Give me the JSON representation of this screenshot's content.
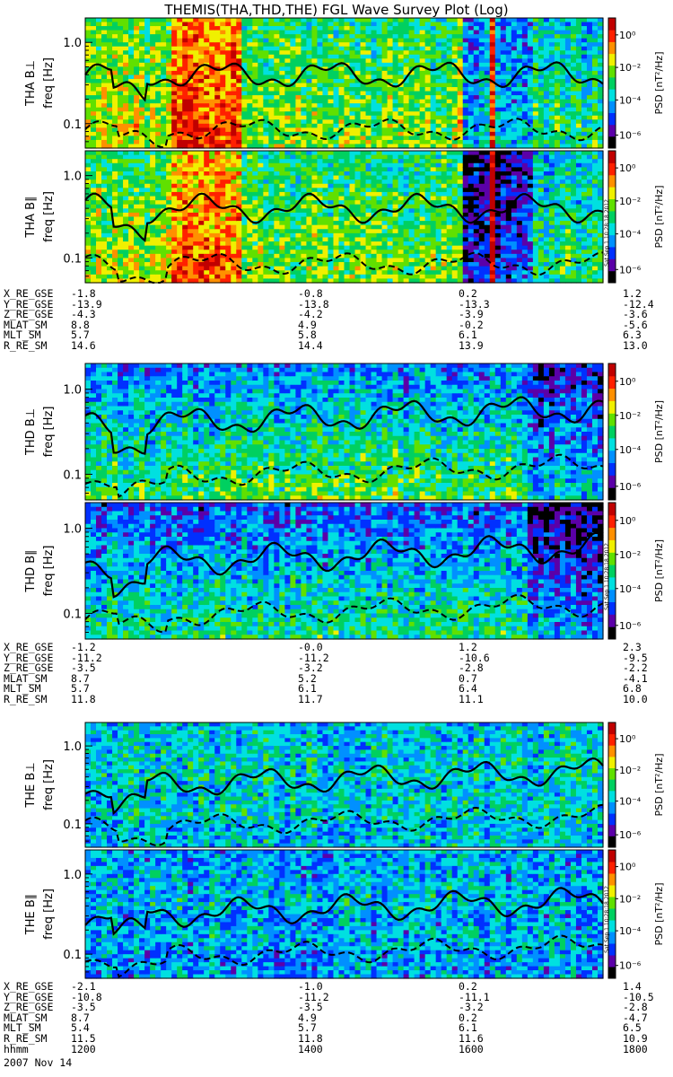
{
  "title": "THEMIS(THA,THD,THE) FGL Wave Survey Plot (Log)",
  "colorbar": {
    "label": "PSD [nT²/Hz]",
    "ticks": [
      "10⁰",
      "10⁻²",
      "10⁻⁴",
      "10⁻⁶"
    ],
    "colors": [
      "#000000",
      "#5b00a8",
      "#0030ff",
      "#0090ff",
      "#00e0e0",
      "#00d060",
      "#60e000",
      "#f0f000",
      "#ff9000",
      "#ff2000",
      "#c00000"
    ]
  },
  "stamp": "Sat Sep 1 10:28:18 2012",
  "chart_data": [
    {
      "type": "heatmap",
      "panel": "THA B⊥",
      "ylabel": "freq [Hz]",
      "yscale": "log",
      "yticks": [
        "1.0",
        "0.1"
      ],
      "ylim": [
        0.05,
        2.0
      ],
      "xlim": [
        "12:00",
        "18:00"
      ],
      "series": [
        {
          "line": "solid"
        },
        {
          "line": "dashed"
        }
      ]
    },
    {
      "type": "heatmap",
      "panel": "THA B∥",
      "ylabel": "freq [Hz]",
      "yscale": "log",
      "yticks": [
        "1.0",
        "0.1"
      ],
      "ylim": [
        0.05,
        2.0
      ],
      "xlim": [
        "12:00",
        "18:00"
      ]
    },
    {
      "type": "heatmap",
      "panel": "THD B⊥",
      "ylabel": "freq [Hz]",
      "yscale": "log",
      "yticks": [
        "1.0",
        "0.1"
      ],
      "ylim": [
        0.05,
        2.0
      ],
      "xlim": [
        "12:00",
        "18:00"
      ]
    },
    {
      "type": "heatmap",
      "panel": "THD B∥",
      "ylabel": "freq [Hz]",
      "yscale": "log",
      "yticks": [
        "1.0",
        "0.1"
      ],
      "ylim": [
        0.05,
        2.0
      ],
      "xlim": [
        "12:00",
        "18:00"
      ]
    },
    {
      "type": "heatmap",
      "panel": "THE B⊥",
      "ylabel": "freq [Hz]",
      "yscale": "log",
      "yticks": [
        "1.0",
        "0.1"
      ],
      "ylim": [
        0.05,
        2.0
      ],
      "xlim": [
        "12:00",
        "18:00"
      ]
    },
    {
      "type": "heatmap",
      "panel": "THE B∥",
      "ylabel": "freq [Hz]",
      "yscale": "log",
      "yticks": [
        "1.0",
        "0.1"
      ],
      "ylim": [
        0.05,
        2.0
      ],
      "xlim": [
        "12:00",
        "18:00"
      ]
    }
  ],
  "panels": [
    {
      "label": "THA B⊥",
      "ylabel": "freq [Hz]"
    },
    {
      "label": "THA B∥",
      "ylabel": "freq [Hz]"
    },
    {
      "label": "THD B⊥",
      "ylabel": "freq [Hz]"
    },
    {
      "label": "THD B∥",
      "ylabel": "freq [Hz]"
    },
    {
      "label": "THE B⊥",
      "ylabel": "freq [Hz]"
    },
    {
      "label": "THE B∥",
      "ylabel": "freq [Hz]"
    }
  ],
  "ephemeris": [
    {
      "rows": [
        {
          "name": "X_RE_GSE",
          "values": [
            "-1.8",
            "-0.8",
            "0.2",
            "1.2"
          ]
        },
        {
          "name": "Y_RE_GSE",
          "values": [
            "-13.9",
            "-13.8",
            "-13.3",
            "-12.4"
          ]
        },
        {
          "name": "Z_RE_GSE",
          "values": [
            "-4.3",
            "-4.2",
            "-3.9",
            "-3.6"
          ]
        },
        {
          "name": "MLAT_SM",
          "values": [
            "8.8",
            "4.9",
            "-0.2",
            "-5.6"
          ]
        },
        {
          "name": "MLT_SM",
          "values": [
            "5.7",
            "5.8",
            "6.1",
            "6.3"
          ]
        },
        {
          "name": "R_RE_SM",
          "values": [
            "14.6",
            "14.4",
            "13.9",
            "13.0"
          ]
        }
      ]
    },
    {
      "rows": [
        {
          "name": "X_RE_GSE",
          "values": [
            "-1.2",
            "-0.0",
            "1.2",
            "2.3"
          ]
        },
        {
          "name": "Y_RE_GSE",
          "values": [
            "-11.2",
            "-11.2",
            "-10.6",
            "-9.5"
          ]
        },
        {
          "name": "Z_RE_GSE",
          "values": [
            "-3.5",
            "-3.2",
            "-2.8",
            "-2.2"
          ]
        },
        {
          "name": "MLAT_SM",
          "values": [
            "8.7",
            "5.2",
            "0.7",
            "-4.1"
          ]
        },
        {
          "name": "MLT_SM",
          "values": [
            "5.7",
            "6.1",
            "6.4",
            "6.8"
          ]
        },
        {
          "name": "R_RE_SM",
          "values": [
            "11.8",
            "11.7",
            "11.1",
            "10.0"
          ]
        }
      ]
    },
    {
      "rows": [
        {
          "name": "X_RE_GSE",
          "values": [
            "-2.1",
            "-1.0",
            "0.2",
            "1.4"
          ]
        },
        {
          "name": "Y_RE_GSE",
          "values": [
            "-10.8",
            "-11.2",
            "-11.1",
            "-10.5"
          ]
        },
        {
          "name": "Z_RE_GSE",
          "values": [
            "-3.5",
            "-3.5",
            "-3.2",
            "-2.8"
          ]
        },
        {
          "name": "MLAT_SM",
          "values": [
            "8.7",
            "4.9",
            "0.2",
            "-4.7"
          ]
        },
        {
          "name": "MLT_SM",
          "values": [
            "5.4",
            "5.7",
            "6.1",
            "6.5"
          ]
        },
        {
          "name": "R_RE_SM",
          "values": [
            "11.5",
            "11.8",
            "11.6",
            "10.9"
          ]
        },
        {
          "name": "hhmm",
          "values": [
            "1200",
            "1400",
            "1600",
            "1800"
          ]
        }
      ]
    }
  ],
  "date": "2007 Nov 14"
}
